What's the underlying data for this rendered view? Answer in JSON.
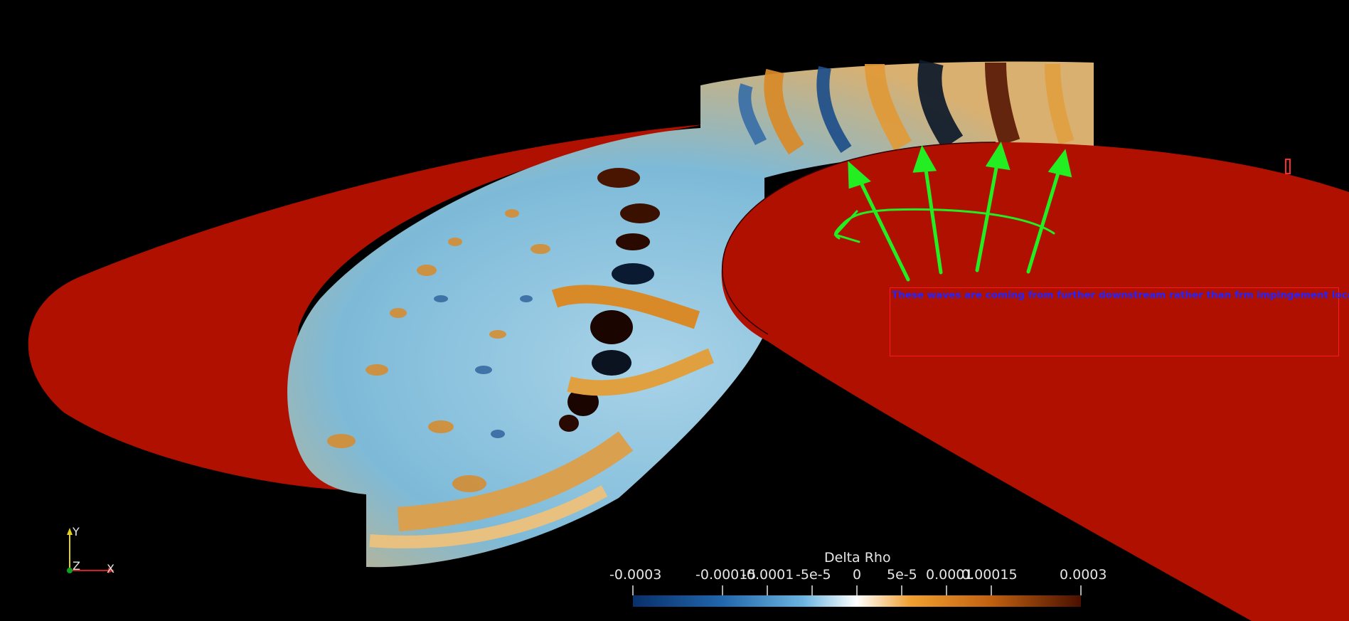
{
  "annotation": {
    "text": "These waves are coming from further downstream rather than frm impingement location"
  },
  "colorbar": {
    "title": "Delta Rho",
    "range": [
      -0.0003,
      0.0003
    ],
    "colors": [
      "#08306b",
      "#2166ac",
      "#6bb4e0",
      "#ffffff",
      "#f0a030",
      "#c06010",
      "#4a1000"
    ],
    "tick_labels": {
      "t0": "-0.0003",
      "t1": "-0.00015",
      "t2": "-0.0001",
      "t3": "-5e-5",
      "t4": "0",
      "t5": "5e-5",
      "t6": "0.0001",
      "t7": "0.00015",
      "t8": "0.0003"
    }
  },
  "axes_triad": {
    "y": "Y",
    "z": "Z",
    "x": "X"
  },
  "colors": {
    "surface": "#b01000",
    "arrow": "#22ee22",
    "annotation_text": "#2323ff",
    "annotation_box": "#ff1a1a"
  }
}
